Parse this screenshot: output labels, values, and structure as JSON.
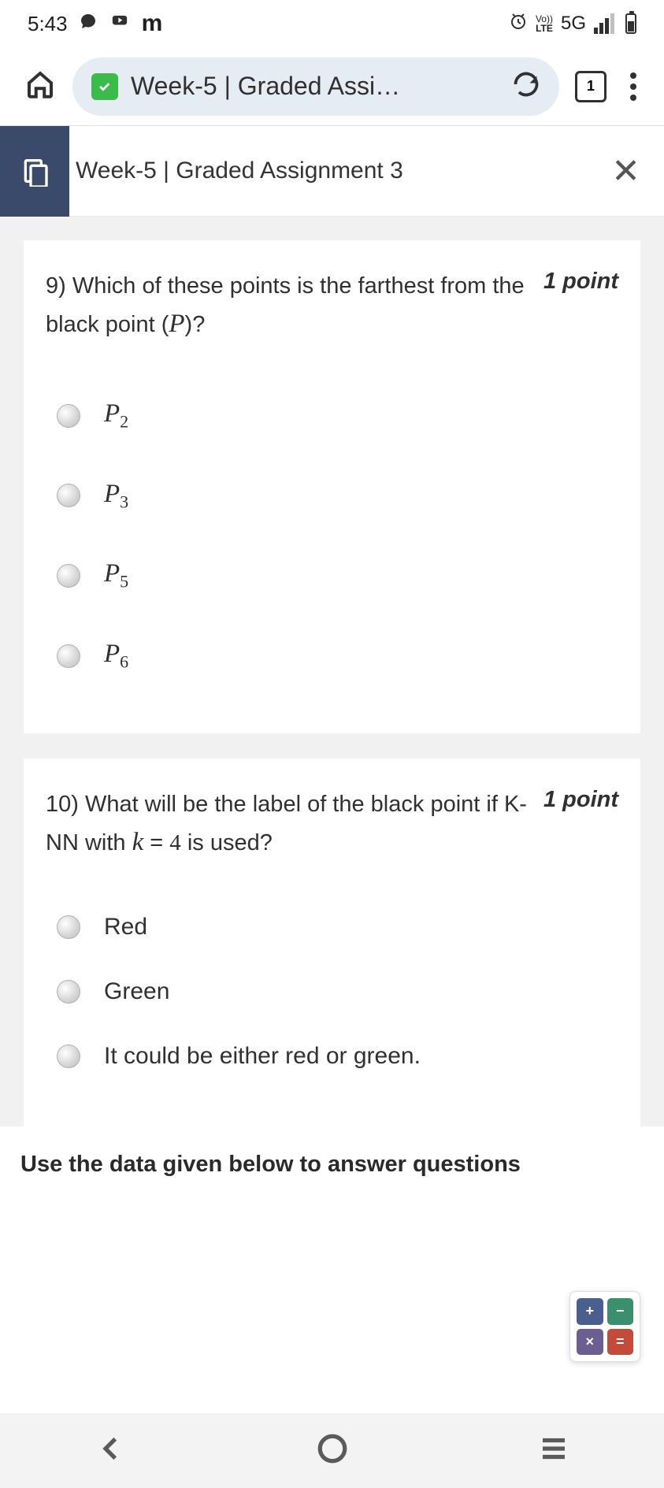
{
  "status": {
    "time": "5:43",
    "network_label": "5G",
    "lte_top": "Vo))",
    "lte_bottom": "LTE"
  },
  "browser": {
    "url_display": "Week-5 | Graded Assi…",
    "tab_count": "1"
  },
  "page": {
    "title": "Week-5 | Graded Assignment 3"
  },
  "q9": {
    "number": "9)",
    "text_part1": "Which of these points is the farthest from the black point (",
    "text_math": "P",
    "text_part2": ")?",
    "points": "1 point",
    "options": [
      {
        "base": "P",
        "sub": "2"
      },
      {
        "base": "P",
        "sub": "3"
      },
      {
        "base": "P",
        "sub": "5"
      },
      {
        "base": "P",
        "sub": "6"
      }
    ]
  },
  "q10": {
    "number": "10)",
    "text_part1": "What will be the label of the black point if K-NN with ",
    "text_math_k": "k",
    "text_eq": " = ",
    "text_val": "4",
    "text_part2": " is used?",
    "points": "1 point",
    "options": [
      "Red",
      "Green",
      "It could be either red or green."
    ]
  },
  "instruction": "Use the data given below to answer questions",
  "calc": {
    "cells": [
      {
        "sym": "+",
        "bg": "#4b5f8f"
      },
      {
        "sym": "−",
        "bg": "#3a8f6f"
      },
      {
        "sym": "×",
        "bg": "#6a5f8f"
      },
      {
        "sym": "=",
        "bg": "#c44a3a"
      }
    ]
  }
}
